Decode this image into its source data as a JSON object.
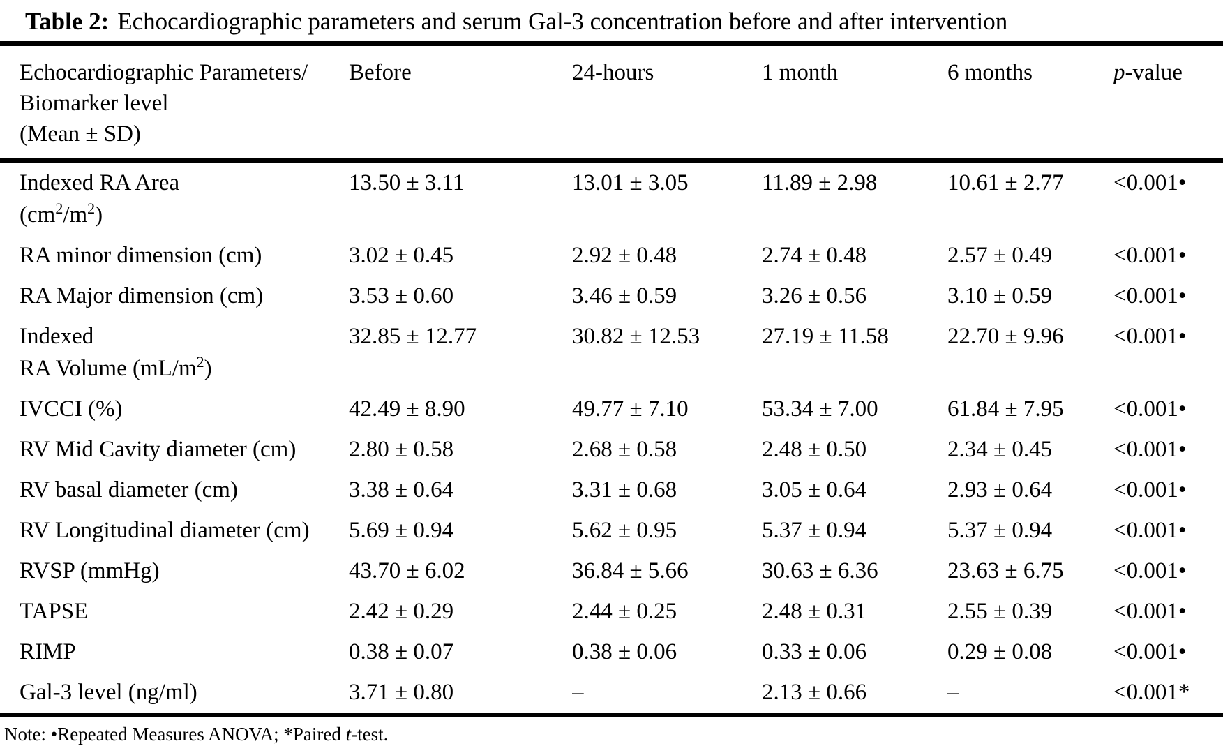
{
  "title": {
    "label": "Table 2:",
    "text": "Echocardiographic parameters and serum Gal-3 concentration before and after intervention"
  },
  "table": {
    "header": {
      "param_lines": [
        "Echocardiographic Parameters/",
        "Biomarker level",
        "(Mean ± SD)"
      ],
      "columns": [
        "Before",
        "24-hours",
        "1 month",
        "6 months"
      ],
      "pvalue": {
        "italic": "p",
        "rest": "-value"
      }
    },
    "rows": [
      {
        "label": [
          [
            {
              "t": "Indexed RA Area"
            }
          ],
          [
            {
              "t": "(cm"
            },
            {
              "t": "2",
              "sup": true
            },
            {
              "t": "/m"
            },
            {
              "t": "2",
              "sup": true
            },
            {
              "t": ")"
            }
          ]
        ],
        "values": [
          "13.50 ± 3.11",
          "13.01 ± 3.05",
          "11.89 ± 2.98",
          "10.61 ± 2.77"
        ],
        "p": "<0.001•"
      },
      {
        "label": [
          [
            {
              "t": "RA minor dimension (cm)"
            }
          ]
        ],
        "values": [
          "3.02 ± 0.45",
          "2.92 ± 0.48",
          "2.74 ± 0.48",
          "2.57 ± 0.49"
        ],
        "p": "<0.001•"
      },
      {
        "label": [
          [
            {
              "t": "RA Major dimension (cm)"
            }
          ]
        ],
        "values": [
          "3.53 ± 0.60",
          "3.46 ± 0.59",
          "3.26 ± 0.56",
          "3.10 ± 0.59"
        ],
        "p": "<0.001•"
      },
      {
        "label": [
          [
            {
              "t": "Indexed"
            }
          ],
          [
            {
              "t": "RA Volume (mL/m"
            },
            {
              "t": "2",
              "sup": true
            },
            {
              "t": ")"
            }
          ]
        ],
        "values": [
          "32.85 ± 12.77",
          "30.82 ± 12.53",
          "27.19 ± 11.58",
          "22.70 ± 9.96"
        ],
        "p": "<0.001•"
      },
      {
        "label": [
          [
            {
              "t": "IVCCI (%)"
            }
          ]
        ],
        "values": [
          "42.49 ± 8.90",
          "49.77 ± 7.10",
          "53.34 ± 7.00",
          "61.84 ± 7.95"
        ],
        "p": "<0.001•"
      },
      {
        "label": [
          [
            {
              "t": "RV Mid Cavity diameter (cm)"
            }
          ]
        ],
        "values": [
          "2.80 ± 0.58",
          "2.68 ± 0.58",
          "2.48 ± 0.50",
          "2.34 ± 0.45"
        ],
        "p": "<0.001•"
      },
      {
        "label": [
          [
            {
              "t": "RV basal diameter (cm)"
            }
          ]
        ],
        "values": [
          "3.38 ± 0.64",
          "3.31 ± 0.68",
          "3.05 ± 0.64",
          "2.93 ± 0.64"
        ],
        "p": "<0.001•"
      },
      {
        "label": [
          [
            {
              "t": "RV Longitudinal diameter (cm)"
            }
          ]
        ],
        "values": [
          "5.69 ± 0.94",
          "5.62 ± 0.95",
          "5.37 ± 0.94",
          "5.37 ± 0.94"
        ],
        "p": "<0.001•"
      },
      {
        "label": [
          [
            {
              "t": "RVSP (mmHg)"
            }
          ]
        ],
        "values": [
          "43.70 ± 6.02",
          "36.84 ± 5.66",
          "30.63 ± 6.36",
          "23.63 ± 6.75"
        ],
        "p": "<0.001•"
      },
      {
        "label": [
          [
            {
              "t": "TAPSE"
            }
          ]
        ],
        "values": [
          "2.42 ± 0.29",
          "2.44 ± 0.25",
          "2.48 ± 0.31",
          "2.55 ± 0.39"
        ],
        "p": "<0.001•"
      },
      {
        "label": [
          [
            {
              "t": "RIMP"
            }
          ]
        ],
        "values": [
          "0.38 ± 0.07",
          "0.38 ± 0.06",
          "0.33 ± 0.06",
          "0.29 ± 0.08"
        ],
        "p": "<0.001•"
      },
      {
        "label": [
          [
            {
              "t": "Gal-3 level (ng/ml)"
            }
          ]
        ],
        "values": [
          "3.71 ± 0.80",
          "–",
          "2.13 ± 0.66",
          "–"
        ],
        "p": "<0.001*"
      }
    ]
  },
  "note": {
    "part1": "Note: •Repeated Measures ANOVA; *Paired ",
    "italic": "t",
    "part2": "-test."
  }
}
